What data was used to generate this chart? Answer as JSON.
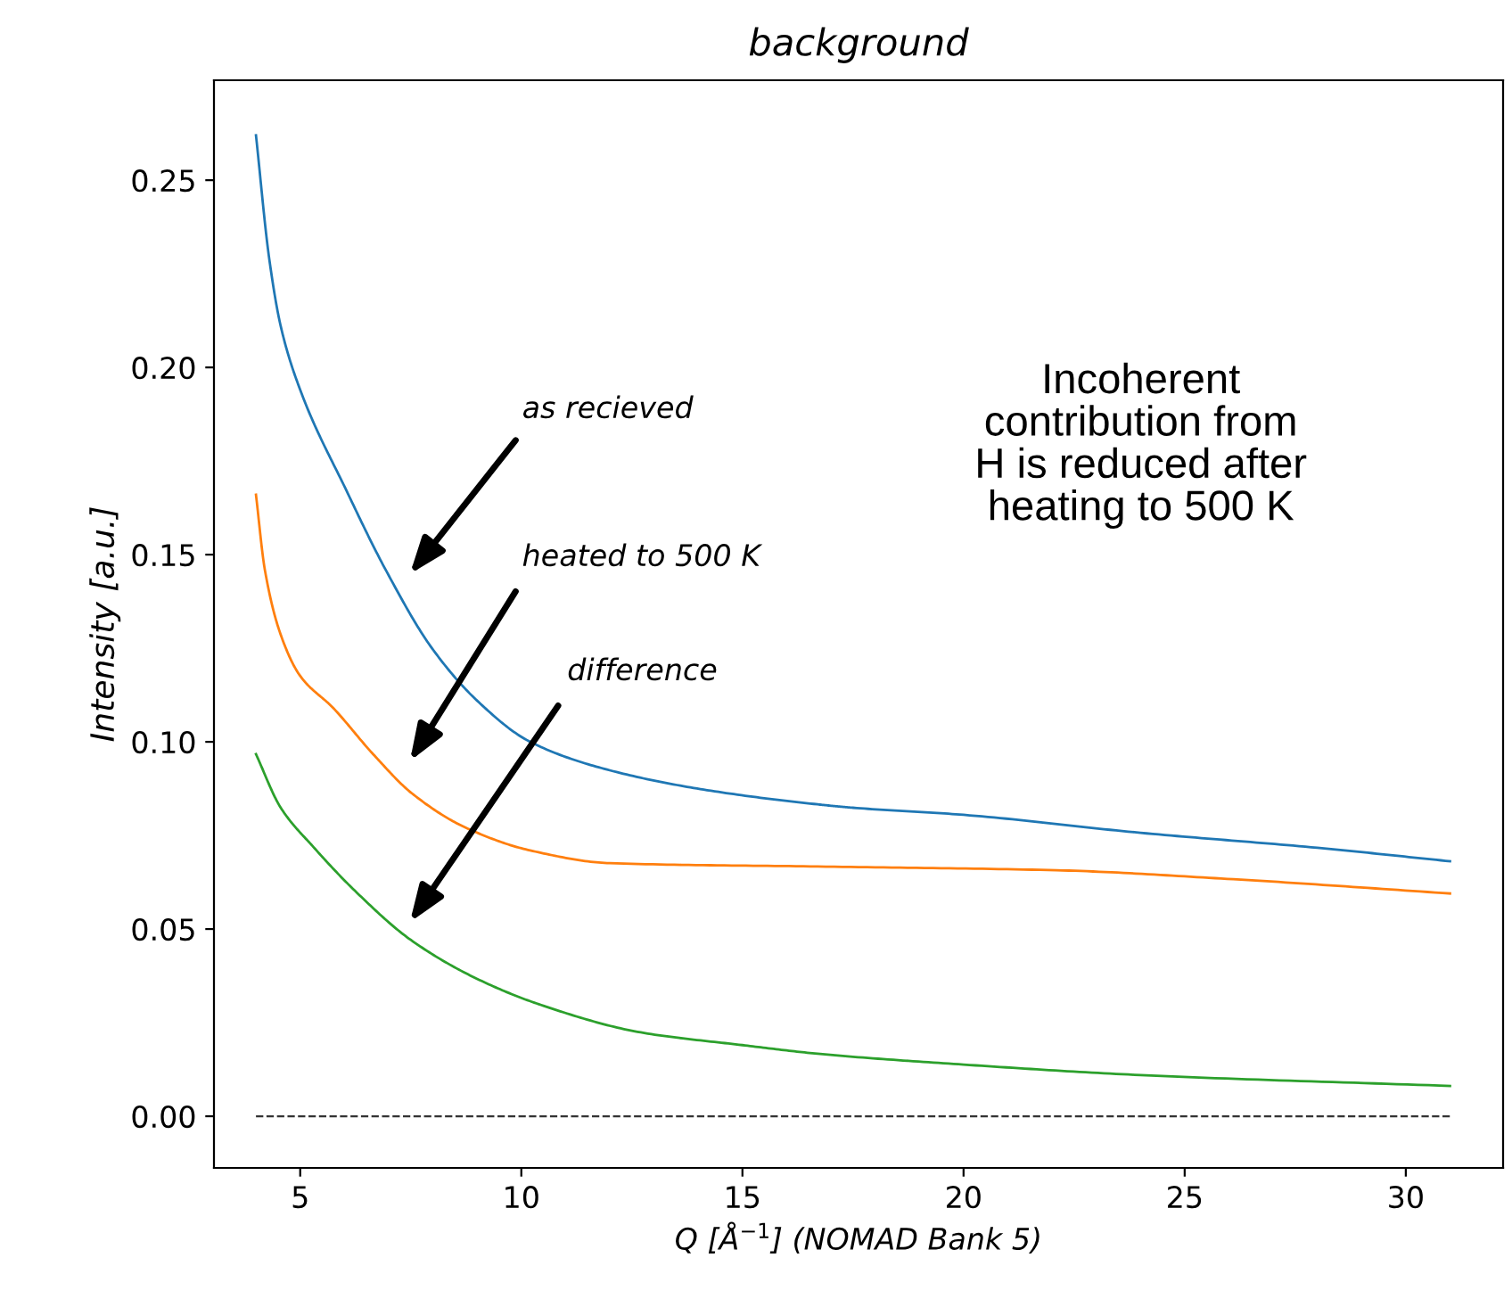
{
  "chart_data": {
    "type": "line",
    "title": "background",
    "xlabel": "Q [Å$^{−1}$] (NOMAD Bank 5)",
    "ylabel": "Intensity [a.u.]",
    "xlim": [
      3.05,
      32.2
    ],
    "ylim": [
      -0.0138,
      0.2767
    ],
    "xticks": [
      5,
      10,
      15,
      20,
      25,
      30
    ],
    "yticks": [
      {
        "value": 0,
        "label": "0.00"
      },
      {
        "value": 0.05,
        "label": "0.05"
      },
      {
        "value": 0.1,
        "label": "0.10"
      },
      {
        "value": 0.15,
        "label": "0.15"
      },
      {
        "value": 0.2,
        "label": "0.20"
      },
      {
        "value": 0.25,
        "label": "0.25"
      }
    ],
    "grid": false,
    "legend": false,
    "series": [
      {
        "color": "#1f77b4",
        "x": [
          4.0,
          4.3,
          4.56,
          5.0,
          6.05,
          6.93,
          7.98,
          9.0,
          10.2,
          12.0,
          14.2,
          16.7,
          17.5,
          20.0,
          24.0,
          28.0,
          31.0
        ],
        "values": [
          0.262,
          0.229,
          0.211,
          0.194,
          0.167,
          0.146,
          0.125,
          0.111,
          0.1,
          0.0924,
          0.0871,
          0.0833,
          0.0824,
          0.0805,
          0.0757,
          0.0717,
          0.0681
        ]
      },
      {
        "color": "#ff7f0e",
        "x": [
          4.0,
          4.2,
          4.56,
          5.0,
          5.75,
          6.65,
          7.53,
          8.74,
          10.2,
          12.0,
          16.7,
          22.1,
          26.1,
          31.0
        ],
        "values": [
          0.166,
          0.146,
          0.1286,
          0.1176,
          0.109,
          0.0967,
          0.0862,
          0.0771,
          0.071,
          0.0676,
          0.0667,
          0.0657,
          0.0633,
          0.0595
        ]
      },
      {
        "color": "#2ca02c",
        "x": [
          4.0,
          4.56,
          5.3,
          6.3,
          7.5,
          9.0,
          10.5,
          12.7,
          15.0,
          16.7,
          20.0,
          24.0,
          31.0
        ],
        "values": [
          0.0967,
          0.0824,
          0.0719,
          0.0595,
          0.0471,
          0.0367,
          0.0295,
          0.0224,
          0.019,
          0.0167,
          0.0138,
          0.011,
          0.0081
        ]
      },
      {
        "color": "#333333",
        "line_style": "dashed",
        "x": [
          4.0,
          31.0
        ],
        "values": [
          0,
          0
        ]
      }
    ],
    "annotations": [
      "as recieved",
      "heated to 500 K",
      "difference",
      "Incoherent\ncontribution from\nH is reduced after\nheating to 500 K"
    ]
  }
}
